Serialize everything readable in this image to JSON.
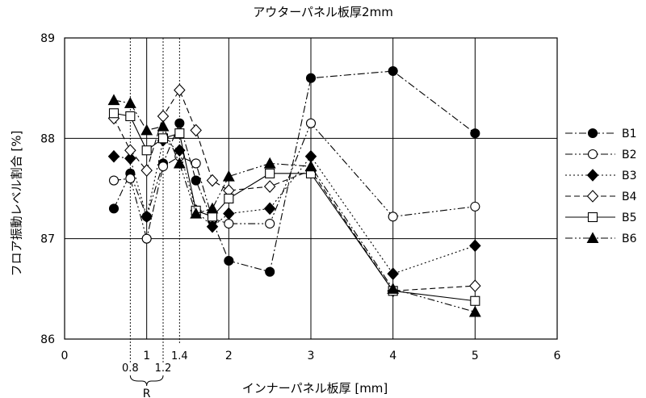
{
  "chart_data": {
    "type": "line",
    "title": "アウターパネル板厚2mm",
    "xlabel": "インナーパネル板厚 [mm]",
    "ylabel": "フロア振動レベル割合 [%]",
    "xlim": [
      0,
      6
    ],
    "ylim": [
      86,
      89
    ],
    "xticks": [
      "0",
      "1",
      "2",
      "3",
      "4",
      "5",
      "6"
    ],
    "yticks": [
      "86",
      "87",
      "88",
      "89"
    ],
    "extra_x_ticks": [
      "0.8",
      "1.2",
      "1.4"
    ],
    "range_label": "R",
    "grid": true,
    "legend_position": "right",
    "x": [
      0.6,
      0.8,
      1.0,
      1.2,
      1.4,
      1.6,
      1.8,
      2.0,
      2.5,
      3.0,
      4.0,
      5.0
    ],
    "series": [
      {
        "name": "B1",
        "marker": "filled-circle",
        "dash": "dash-dot",
        "values": [
          87.3,
          87.65,
          87.22,
          87.75,
          88.15,
          87.58,
          87.18,
          86.78,
          86.67,
          88.6,
          88.67,
          88.05
        ]
      },
      {
        "name": "B2",
        "marker": "open-circle",
        "dash": "dash-dot-dot",
        "values": [
          87.58,
          87.6,
          87.0,
          87.72,
          87.82,
          87.75,
          87.2,
          87.15,
          87.15,
          88.15,
          87.22,
          87.32
        ]
      },
      {
        "name": "B3",
        "marker": "filled-diamond",
        "dash": "dotted",
        "values": [
          87.82,
          87.8,
          87.22,
          87.98,
          87.88,
          87.28,
          87.12,
          87.25,
          87.3,
          87.82,
          86.65,
          86.93
        ]
      },
      {
        "name": "B4",
        "marker": "open-diamond",
        "dash": "dashed",
        "values": [
          88.2,
          87.88,
          87.68,
          88.22,
          88.48,
          88.08,
          87.58,
          87.48,
          87.52,
          87.68,
          86.48,
          86.53
        ]
      },
      {
        "name": "B5",
        "marker": "open-square",
        "dash": "solid",
        "values": [
          88.25,
          88.22,
          87.88,
          88.0,
          88.05,
          87.28,
          87.22,
          87.4,
          87.65,
          87.65,
          86.48,
          86.38
        ]
      },
      {
        "name": "B6",
        "marker": "filled-triangle",
        "dash": "dash-dot-dot",
        "values": [
          88.38,
          88.35,
          88.08,
          88.12,
          87.75,
          87.25,
          87.3,
          87.62,
          87.75,
          87.72,
          86.5,
          86.27
        ]
      }
    ]
  }
}
